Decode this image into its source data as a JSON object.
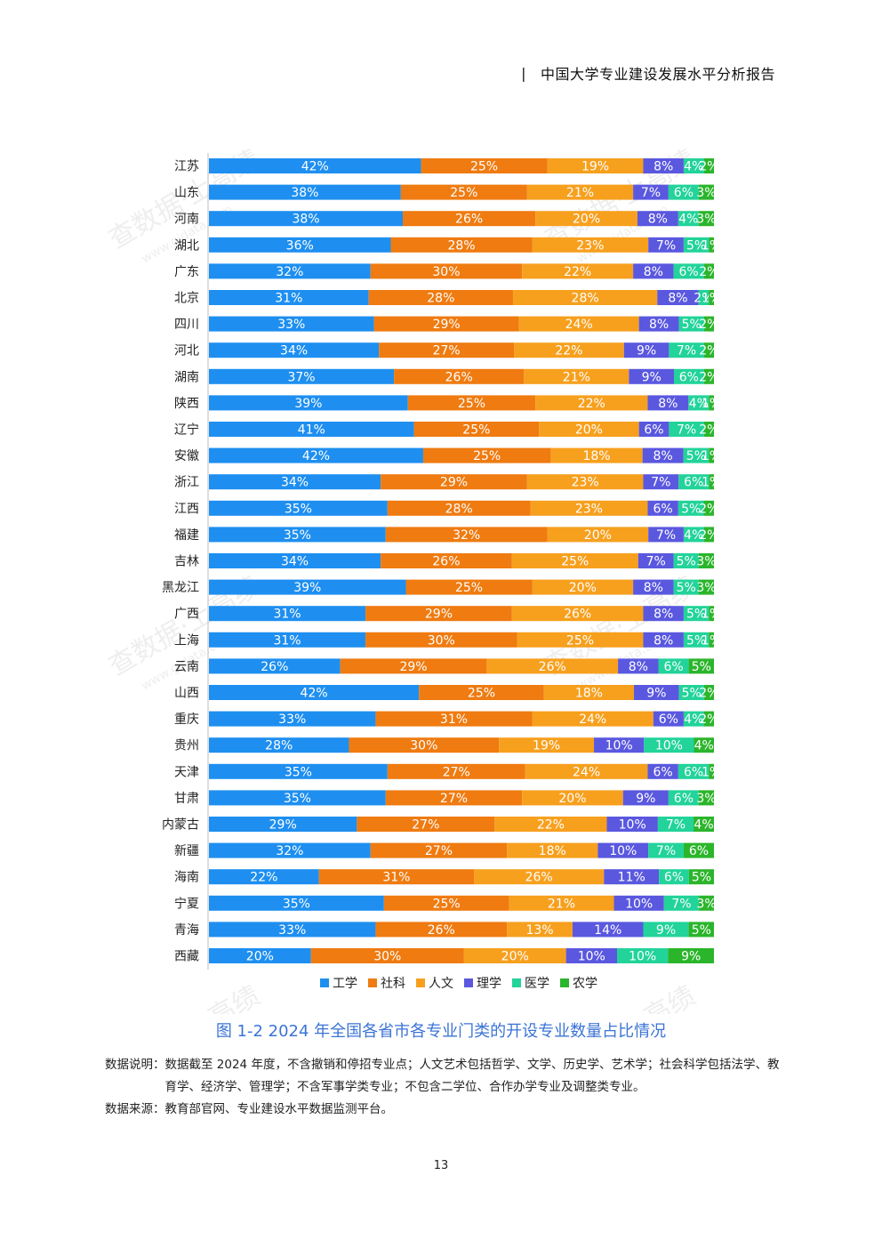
{
  "header": {
    "separator": "|",
    "title": "中国大学专业建设发展水平分析报告"
  },
  "chart_data": {
    "type": "bar",
    "orientation": "horizontal-stacked-100",
    "categories": [
      "江苏",
      "山东",
      "河南",
      "湖北",
      "广东",
      "北京",
      "四川",
      "河北",
      "湖南",
      "陕西",
      "辽宁",
      "安徽",
      "浙江",
      "江西",
      "福建",
      "吉林",
      "黑龙江",
      "广西",
      "上海",
      "云南",
      "山西",
      "重庆",
      "贵州",
      "天津",
      "甘肃",
      "内蒙古",
      "新疆",
      "海南",
      "宁夏",
      "青海",
      "西藏"
    ],
    "series": [
      {
        "name": "工学",
        "color": "#1e8ff0",
        "values": [
          42,
          38,
          38,
          36,
          32,
          31,
          33,
          34,
          37,
          39,
          41,
          42,
          34,
          35,
          35,
          34,
          39,
          31,
          31,
          26,
          42,
          33,
          28,
          35,
          35,
          29,
          32,
          22,
          35,
          33,
          20
        ]
      },
      {
        "name": "社科",
        "color": "#ef7b11",
        "values": [
          25,
          25,
          26,
          28,
          30,
          28,
          29,
          27,
          26,
          25,
          25,
          25,
          29,
          28,
          32,
          26,
          25,
          29,
          30,
          29,
          25,
          31,
          30,
          27,
          27,
          27,
          27,
          31,
          25,
          26,
          30
        ]
      },
      {
        "name": "人文",
        "color": "#f7a01e",
        "values": [
          19,
          21,
          20,
          23,
          22,
          28,
          24,
          22,
          21,
          22,
          20,
          18,
          23,
          23,
          20,
          25,
          20,
          26,
          25,
          26,
          18,
          24,
          19,
          24,
          20,
          22,
          18,
          26,
          21,
          13,
          20
        ]
      },
      {
        "name": "理学",
        "color": "#5a58df",
        "values": [
          8,
          7,
          8,
          7,
          8,
          8,
          8,
          9,
          9,
          8,
          6,
          8,
          7,
          6,
          7,
          7,
          8,
          8,
          8,
          8,
          9,
          6,
          10,
          6,
          9,
          10,
          10,
          11,
          10,
          14,
          10
        ]
      },
      {
        "name": "医学",
        "color": "#22d39a",
        "values": [
          4,
          6,
          4,
          5,
          6,
          2,
          5,
          7,
          6,
          4,
          7,
          5,
          6,
          5,
          4,
          5,
          5,
          5,
          5,
          6,
          5,
          4,
          10,
          6,
          6,
          7,
          7,
          6,
          7,
          9,
          10
        ]
      },
      {
        "name": "农学",
        "color": "#2bb52b",
        "values": [
          2,
          3,
          3,
          1,
          2,
          1,
          2,
          2,
          2,
          1,
          2,
          1,
          1,
          2,
          2,
          3,
          3,
          1,
          1,
          5,
          2,
          2,
          4,
          1,
          3,
          4,
          6,
          5,
          3,
          5,
          9
        ]
      }
    ],
    "value_format": "percent",
    "legend_position": "bottom",
    "grid": false
  },
  "caption": "图 1-2   2024 年全国各省市各专业门类的开设专业数量占比情况",
  "notes": [
    {
      "key": "数据说明：",
      "text": "数据截至 2024 年度，不含撤销和停招专业点；人文艺术包括哲学、文学、历史学、艺术学；社会科学包括法学、教育学、经济学、管理学；不含军事学类专业；不包含二学位、合作办学专业及调整类专业。"
    },
    {
      "key": "数据来源：",
      "text": "教育部官网、专业建设水平数据监测平台。"
    }
  ],
  "page_number": "13",
  "watermark": {
    "text": "查数据·上高绩",
    "url": "www.gjdata.com"
  }
}
